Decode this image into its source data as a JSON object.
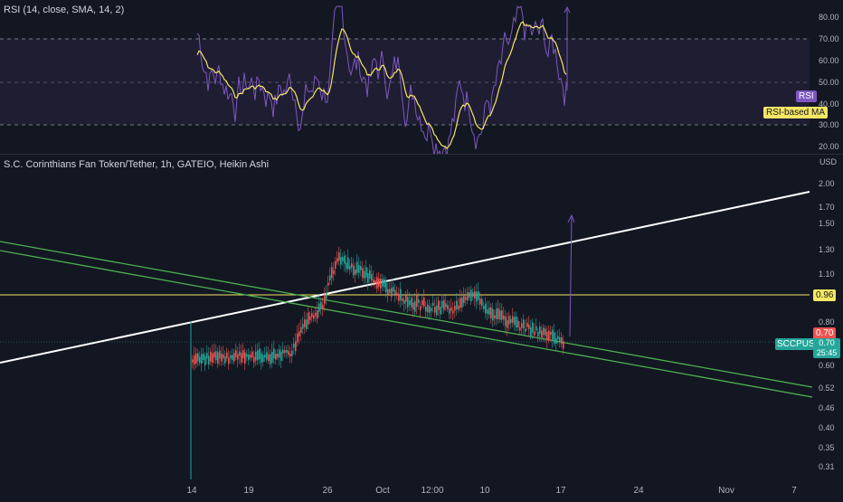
{
  "rsi": {
    "title": "RSI (14, close, SMA, 14, 2)",
    "axis_ticks": [
      "80.00",
      "70.00",
      "60.00",
      "50.00",
      "40.00",
      "30.00",
      "20.00"
    ],
    "tag_rsi": "RSI",
    "tag_ma": "RSI-based MA",
    "colors": {
      "rsi": "#7e57c2",
      "ma": "#f5e663",
      "band": "#7e57c2"
    }
  },
  "price": {
    "title": "S.C. Corinthians Fan Token/Tether, 1h, GATEIO, Heikin Ashi",
    "currency": "USD",
    "axis_ticks": [
      "2.00",
      "1.70",
      "1.50",
      "1.30",
      "1.10",
      "0.96",
      "0.80",
      "0.70",
      "0.60",
      "0.52",
      "0.46",
      "0.40",
      "0.35",
      "0.31"
    ],
    "level_tag": "0.96",
    "last_price_tag": "0.70",
    "symbol_tag": "SCCPUSDT",
    "symbol_price": "0.70",
    "countdown": "25:45",
    "colors": {
      "up": "#26a69a",
      "down": "#ef5350",
      "trend_white": "#ffffff",
      "channel": "#4caf50",
      "level": "#f5e663",
      "arrow": "#7e57c2"
    }
  },
  "time_axis": [
    "14",
    "19",
    "26",
    "Oct",
    "12:00",
    "10",
    "17",
    "24",
    "Nov",
    "7"
  ]
}
